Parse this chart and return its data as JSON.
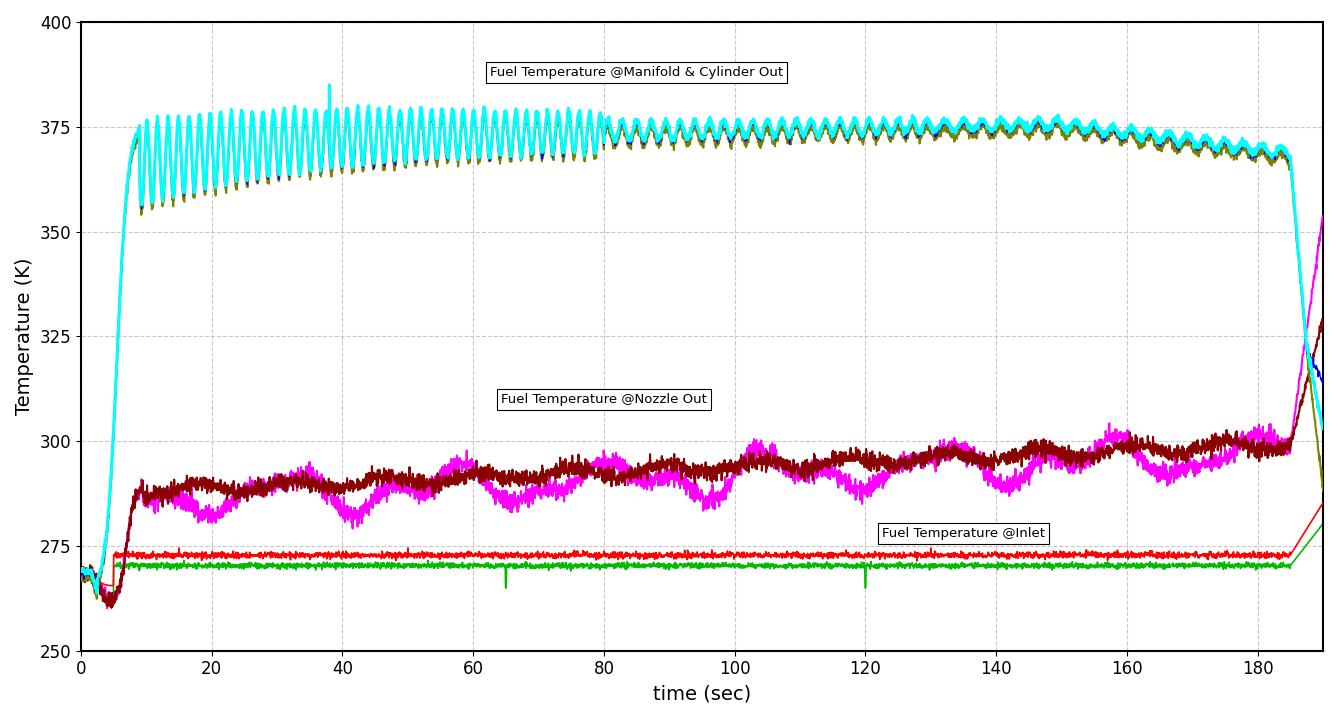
{
  "title": "",
  "xlabel": "time (sec)",
  "ylabel": "Temperature (K)",
  "xlim": [
    0,
    190
  ],
  "ylim": [
    250,
    400
  ],
  "xticks": [
    0,
    20,
    40,
    60,
    80,
    100,
    120,
    140,
    160,
    180
  ],
  "yticks": [
    250,
    275,
    300,
    325,
    350,
    375,
    400
  ],
  "grid_color": "#c8c8c8",
  "bg_color": "#ffffff",
  "ann_manifold": "Fuel Temperature @Manifold & Cylinder Out",
  "ann_nozzle": "Fuel Temperature @Nozzle Out",
  "ann_inlet": "Fuel Temperature @Inlet",
  "series": {
    "cyan": {
      "color": "#00ffff",
      "lw": 2.2
    },
    "olive": {
      "color": "#808000",
      "lw": 1.5
    },
    "blue": {
      "color": "#0000ff",
      "lw": 1.0
    },
    "darkred": {
      "color": "#8b0000",
      "lw": 1.5
    },
    "magenta": {
      "color": "#ff00ff",
      "lw": 1.5
    },
    "red": {
      "color": "#ff0000",
      "lw": 1.2
    },
    "green": {
      "color": "#00bb00",
      "lw": 1.2
    }
  }
}
